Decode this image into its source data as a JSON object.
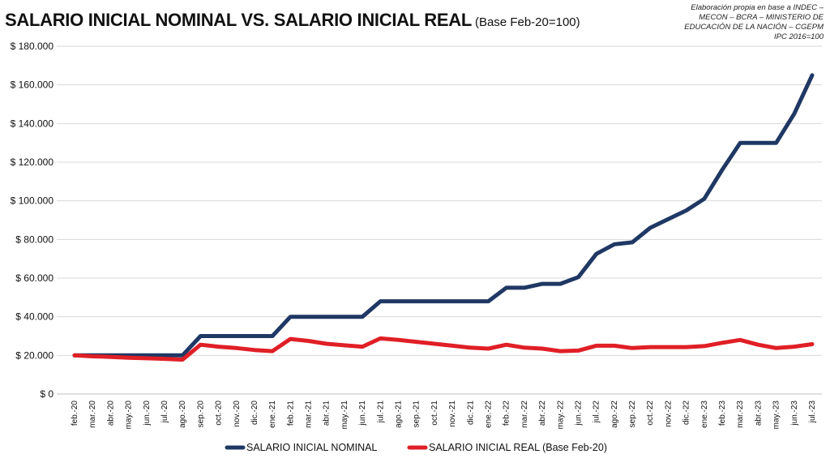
{
  "title": {
    "main": "SALARIO INICIAL NOMINAL VS. SALARIO INICIAL REAL",
    "sub": "(Base Feb-20=100)"
  },
  "source": [
    "Elaboración propia en base a INDEC –",
    "MECON – BCRA – MINISTERIO DE",
    "EDUCACIÓN DE LA NACIÓN – CGEPM",
    "IPC 2016=100"
  ],
  "chart_data": {
    "type": "line",
    "title": "SALARIO INICIAL NOMINAL VS. SALARIO INICIAL REAL (Base Feb-20=100)",
    "xlabel": "",
    "ylabel": "",
    "ylim": [
      0,
      180000
    ],
    "grid": true,
    "legend_position": "bottom",
    "y_ticks": [
      "$ 0",
      "$ 20.000",
      "$ 40.000",
      "$ 60.000",
      "$ 80.000",
      "$ 100.000",
      "$ 120.000",
      "$ 140.000",
      "$ 160.000",
      "$ 180.000"
    ],
    "categories": [
      "feb.-20",
      "mar.-20",
      "abr.-20",
      "may.-20",
      "jun.-20",
      "jul.-20",
      "ago.-20",
      "sep.-20",
      "oct.-20",
      "nov.-20",
      "dic.-20",
      "ene.-21",
      "feb.-21",
      "mar.-21",
      "abr.-21",
      "may.-21",
      "jun.-21",
      "jul.-21",
      "ago.-21",
      "sep.-21",
      "oct.-21",
      "nov.-21",
      "dic.-21",
      "ene.-22",
      "feb.-22",
      "mar.-22",
      "abr.-22",
      "may.-22",
      "jun.-22",
      "jul.-22",
      "ago.-22",
      "sep.-22",
      "oct.-22",
      "nov.-22",
      "dic.-22",
      "ene.-23",
      "feb.-23",
      "mar.-23",
      "abr.-23",
      "may.-23",
      "jun.-23",
      "jul.-23"
    ],
    "series": [
      {
        "name": "SALARIO INICIAL NOMINAL",
        "color": "#1f3864",
        "values": [
          20000,
          20000,
          20000,
          20000,
          20000,
          20000,
          20000,
          30000,
          30000,
          30000,
          30000,
          30000,
          40000,
          40000,
          40000,
          40000,
          40000,
          48000,
          48000,
          48000,
          48000,
          48000,
          48000,
          48000,
          55000,
          55000,
          57000,
          57000,
          60500,
          72500,
          77500,
          78500,
          86000,
          90500,
          95000,
          101000,
          116000,
          130000,
          130000,
          130000,
          145000,
          165000
        ]
      },
      {
        "name": "SALARIO INICIAL REAL (Base Feb-20)",
        "color": "#e01f26",
        "values": [
          20000,
          19500,
          19200,
          18800,
          18500,
          18200,
          17800,
          25500,
          24500,
          23800,
          22800,
          22200,
          28500,
          27500,
          26000,
          25200,
          24500,
          28800,
          28000,
          27000,
          26000,
          25000,
          24000,
          23500,
          25500,
          24000,
          23500,
          22200,
          22500,
          25000,
          25000,
          23800,
          24300,
          24300,
          24300,
          24800,
          26500,
          28000,
          25500,
          23800,
          24500,
          25800
        ]
      }
    ]
  }
}
